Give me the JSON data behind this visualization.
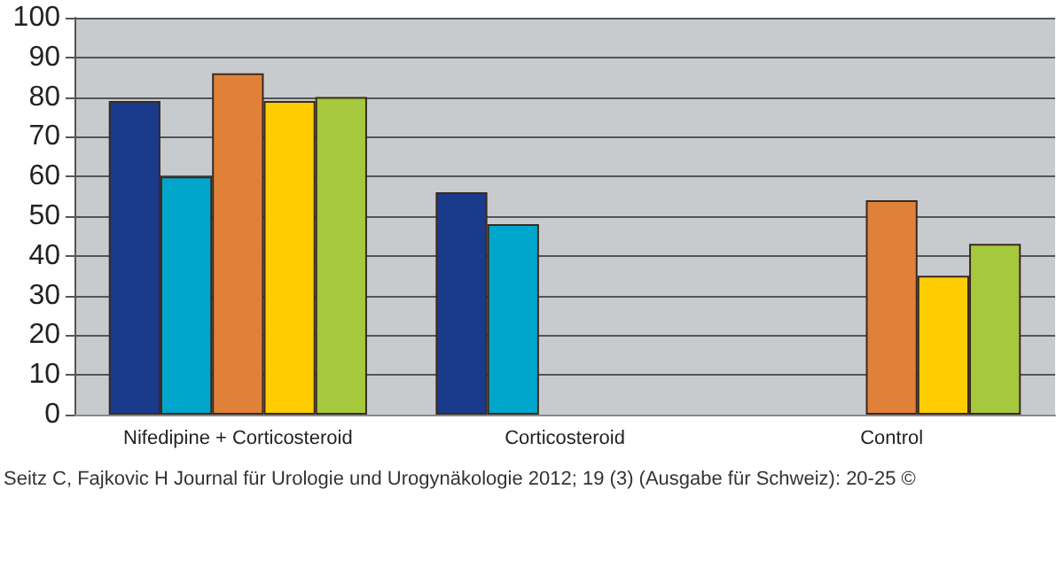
{
  "chart_data": {
    "type": "bar",
    "categories": [
      "Nifedipine + Corticosteroid",
      "Corticosteroid",
      "Control"
    ],
    "series": [
      {
        "color": "#1a3a8c",
        "values": [
          79,
          56,
          null
        ]
      },
      {
        "color": "#00a6cc",
        "values": [
          60,
          48,
          null
        ]
      },
      {
        "color": "#e0813a",
        "values": [
          86,
          null,
          54
        ]
      },
      {
        "color": "#ffcc00",
        "values": [
          79,
          null,
          35
        ]
      },
      {
        "color": "#a6c83c",
        "values": [
          80,
          null,
          43
        ]
      }
    ],
    "ylim": [
      0,
      100
    ],
    "yticks": [
      0,
      10,
      20,
      30,
      40,
      50,
      60,
      70,
      80,
      90,
      100
    ],
    "grid": "y",
    "annotations": [
      "Seitz C, Fajkovic H Journal für Urologie und Urogynäkologie 2012; 19 (3) (Ausgabe für Schweiz): 20-25 ©"
    ]
  }
}
